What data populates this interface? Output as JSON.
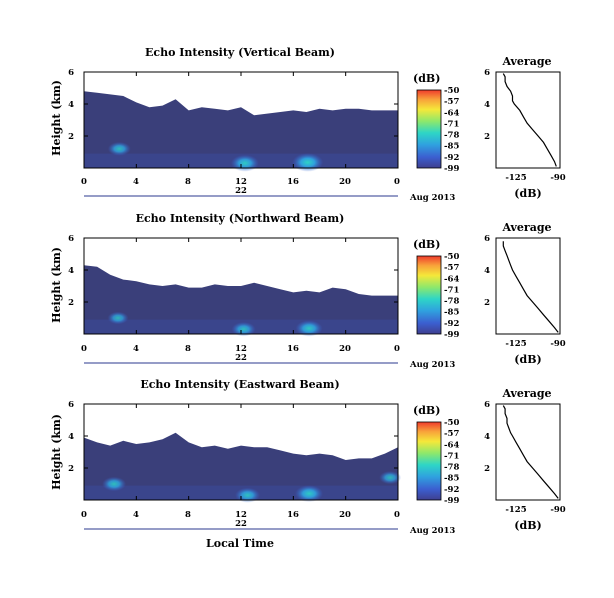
{
  "colors": {
    "background": "#ffffff",
    "echo_fill": "#3a3f7a",
    "axis": "#000000",
    "colorbar": [
      "#ef3b2c",
      "#f8a13a",
      "#f5e83a",
      "#8ee86b",
      "#2ed6c6",
      "#2fa2df",
      "#3b5fd0",
      "#3f3f8f"
    ]
  },
  "bottom_xlabel": "Local Time",
  "chart_data": [
    {
      "type": "heatmap",
      "panel": "vertical",
      "title": "Echo Intensity (Vertical Beam)",
      "ylabel": "Height (km)",
      "xlabel": "",
      "x_ticks": [
        "0",
        "4",
        "8",
        "12",
        "16",
        "20",
        "0"
      ],
      "y_ticks": [
        "6",
        "4",
        "2"
      ],
      "x_range_hours": [
        0,
        24
      ],
      "y_range_km": [
        0,
        6
      ],
      "day_label": "22",
      "month_label": "Aug 2013",
      "colorbar": {
        "unit": "(dB)",
        "ticks": [
          "-50",
          "-57",
          "-64",
          "-71",
          "-78",
          "-85",
          "-92",
          "-99"
        ]
      },
      "echo_top_km": [
        4.8,
        4.7,
        4.6,
        4.5,
        4.1,
        3.8,
        3.9,
        4.3,
        3.6,
        3.8,
        3.7,
        3.6,
        3.8,
        3.3,
        3.4,
        3.5,
        3.6,
        3.5,
        3.7,
        3.6,
        3.7,
        3.7,
        3.6,
        3.6,
        3.6
      ],
      "strong_echo": [
        {
          "hour": 2.7,
          "height_km": 1.2,
          "level": 0.55
        },
        {
          "hour": 12.3,
          "height_km": 0.3,
          "level": 0.8
        },
        {
          "hour": 17.1,
          "height_km": 0.35,
          "level": 0.95
        }
      ],
      "average": {
        "title": "Average",
        "xlabel": "(dB)",
        "x_ticks": [
          "-125",
          "-90"
        ],
        "y_ticks": [
          "6",
          "4",
          "2"
        ],
        "xlim": [
          -125,
          -90
        ],
        "ylim": [
          0,
          6
        ],
        "height_km": [
          0.1,
          0.4,
          0.8,
          1.2,
          1.6,
          2.0,
          2.4,
          2.8,
          3.2,
          3.6,
          4.0,
          4.2,
          4.5,
          4.8,
          5.1,
          5.4,
          5.7,
          5.9
        ],
        "db": [
          -92,
          -93,
          -95,
          -97,
          -99,
          -102,
          -105,
          -108,
          -110,
          -112,
          -115,
          -116,
          -116,
          -117,
          -119,
          -120,
          -120,
          -121
        ]
      }
    },
    {
      "type": "heatmap",
      "panel": "northward",
      "title": "Echo Intensity (Northward Beam)",
      "ylabel": "Height (km)",
      "xlabel": "",
      "x_ticks": [
        "0",
        "4",
        "8",
        "12",
        "16",
        "20",
        "0"
      ],
      "y_ticks": [
        "6",
        "4",
        "2"
      ],
      "x_range_hours": [
        0,
        24
      ],
      "y_range_km": [
        0,
        6
      ],
      "day_label": "22",
      "month_label": "Aug 2013",
      "colorbar": {
        "unit": "(dB)",
        "ticks": [
          "-50",
          "-57",
          "-64",
          "-71",
          "-78",
          "-85",
          "-92",
          "-99"
        ]
      },
      "echo_top_km": [
        4.3,
        4.2,
        3.7,
        3.4,
        3.3,
        3.1,
        3.0,
        3.1,
        2.9,
        2.9,
        3.1,
        3.0,
        3.0,
        3.2,
        3.0,
        2.8,
        2.6,
        2.7,
        2.6,
        2.9,
        2.8,
        2.5,
        2.4,
        2.4,
        2.4
      ],
      "strong_echo": [
        {
          "hour": 2.6,
          "height_km": 1.0,
          "level": 0.45
        },
        {
          "hour": 12.2,
          "height_km": 0.3,
          "level": 0.6
        },
        {
          "hour": 17.2,
          "height_km": 0.35,
          "level": 0.75
        }
      ],
      "average": {
        "title": "Average",
        "xlabel": "(dB)",
        "x_ticks": [
          "-125",
          "-90"
        ],
        "y_ticks": [
          "6",
          "4",
          "2"
        ],
        "xlim": [
          -125,
          -90
        ],
        "ylim": [
          0,
          6
        ],
        "height_km": [
          0.1,
          0.4,
          0.8,
          1.2,
          1.6,
          2.0,
          2.4,
          2.8,
          3.2,
          3.6,
          4.0,
          4.3,
          4.6,
          4.9,
          5.2,
          5.5,
          5.8
        ],
        "db": [
          -91,
          -93,
          -96,
          -99,
          -102,
          -105,
          -108,
          -110,
          -112,
          -114,
          -116,
          -117,
          -118,
          -119,
          -120,
          -121,
          -121
        ]
      }
    },
    {
      "type": "heatmap",
      "panel": "eastward",
      "title": "Echo Intensity (Eastward Beam)",
      "ylabel": "Height (km)",
      "xlabel": "Local Time",
      "x_ticks": [
        "0",
        "4",
        "8",
        "12",
        "16",
        "20",
        "0"
      ],
      "y_ticks": [
        "6",
        "4",
        "2"
      ],
      "x_range_hours": [
        0,
        24
      ],
      "y_range_km": [
        0,
        6
      ],
      "day_label": "22",
      "month_label": "Aug 2013",
      "colorbar": {
        "unit": "(dB)",
        "ticks": [
          "-50",
          "-57",
          "-64",
          "-71",
          "-78",
          "-85",
          "-92",
          "-99"
        ]
      },
      "echo_top_km": [
        3.9,
        3.6,
        3.4,
        3.7,
        3.5,
        3.6,
        3.8,
        4.2,
        3.6,
        3.3,
        3.4,
        3.2,
        3.4,
        3.3,
        3.3,
        3.1,
        2.9,
        2.8,
        2.9,
        2.8,
        2.5,
        2.6,
        2.6,
        2.9,
        3.3
      ],
      "strong_echo": [
        {
          "hour": 2.3,
          "height_km": 1.0,
          "level": 0.6
        },
        {
          "hour": 12.5,
          "height_km": 0.3,
          "level": 0.65
        },
        {
          "hour": 17.2,
          "height_km": 0.4,
          "level": 0.8
        },
        {
          "hour": 23.4,
          "height_km": 1.4,
          "level": 0.5
        }
      ],
      "average": {
        "title": "Average",
        "xlabel": "(dB)",
        "x_ticks": [
          "-125",
          "-90"
        ],
        "y_ticks": [
          "6",
          "4",
          "2"
        ],
        "xlim": [
          -125,
          -90
        ],
        "ylim": [
          0,
          6
        ],
        "height_km": [
          0.1,
          0.4,
          0.8,
          1.2,
          1.6,
          2.0,
          2.4,
          2.8,
          3.2,
          3.6,
          4.0,
          4.2,
          4.5,
          4.8,
          5.1,
          5.4,
          5.7,
          5.9
        ],
        "db": [
          -91,
          -93,
          -96,
          -99,
          -102,
          -105,
          -108,
          -110,
          -112,
          -114,
          -116,
          -117,
          -118,
          -119,
          -119,
          -120,
          -120,
          -121
        ]
      }
    }
  ]
}
